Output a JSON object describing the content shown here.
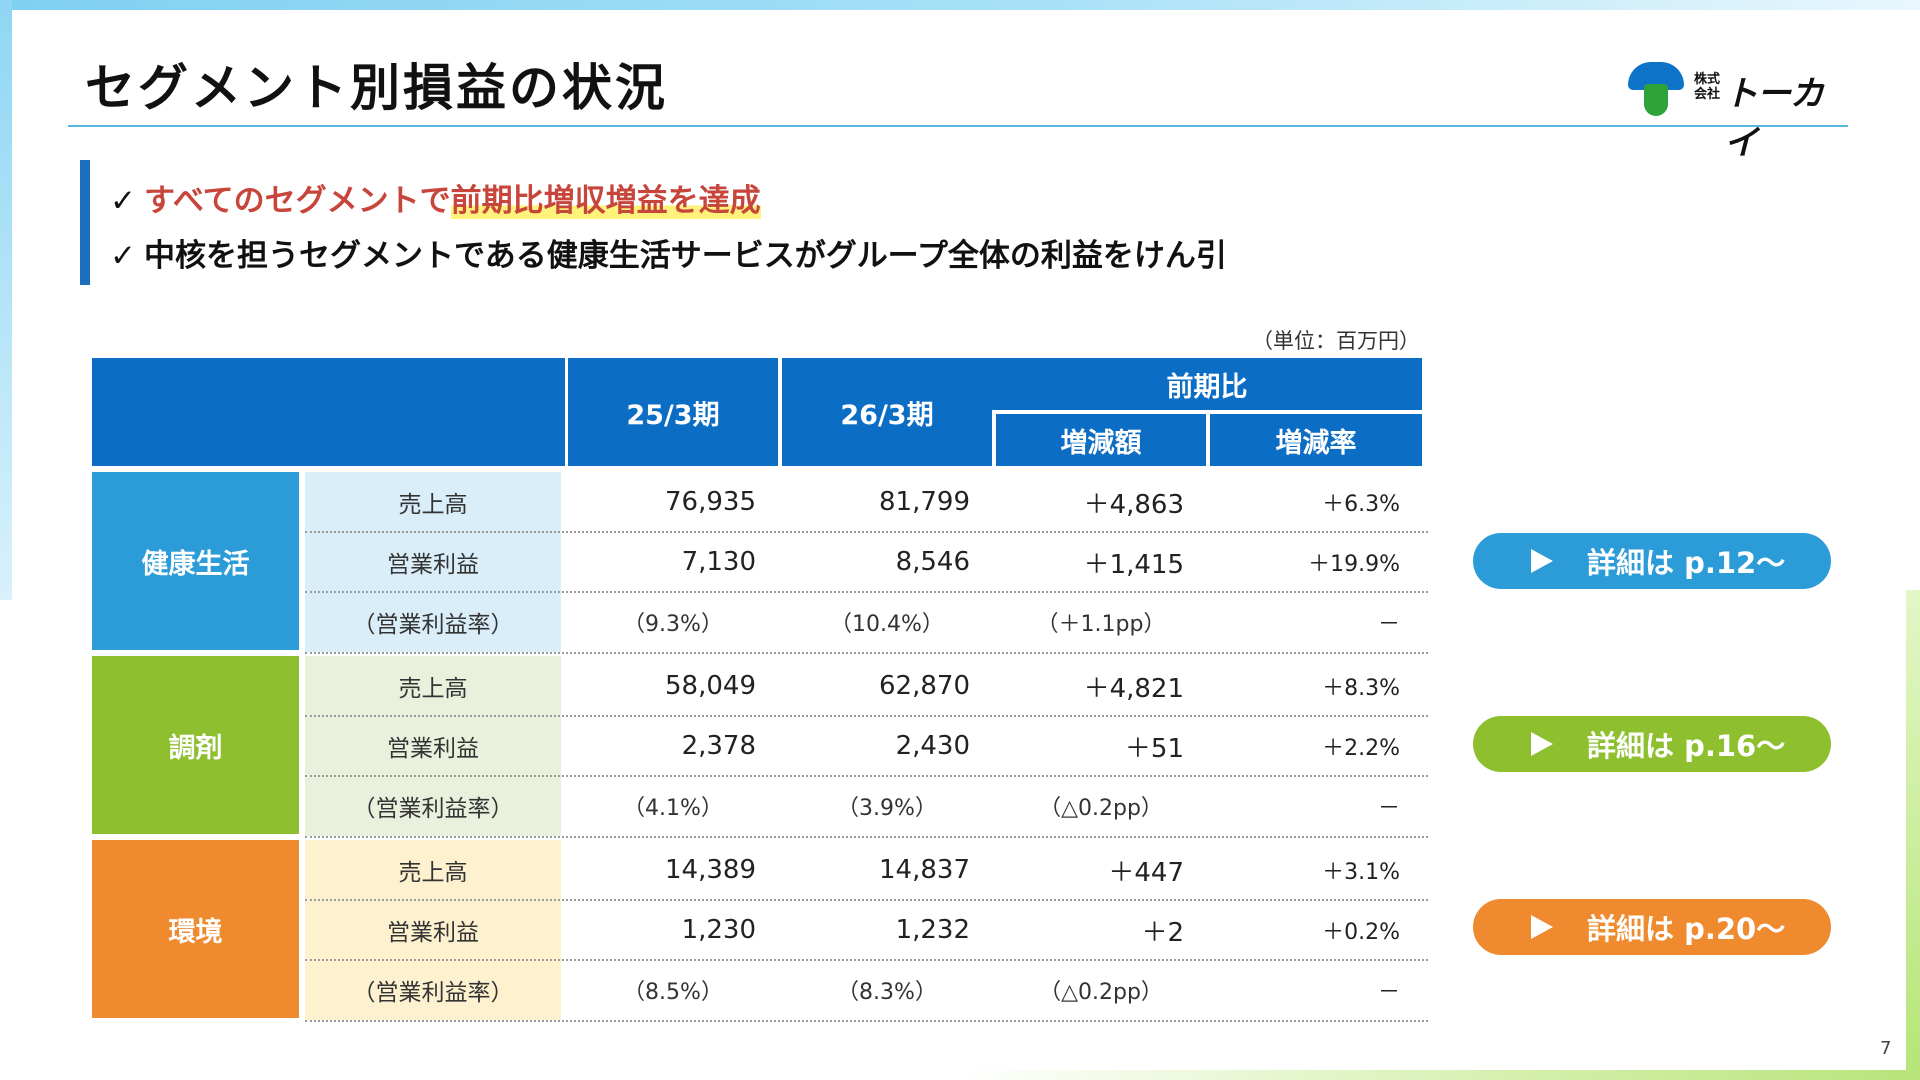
{
  "title": "セグメント別損益の状況",
  "logo": {
    "small_text": "株式会社",
    "name": "トーカイ"
  },
  "bullets": [
    {
      "check": "✓",
      "text_plain": "すべてのセグメントで",
      "text_highlight": "前期比増収増益を達成"
    },
    {
      "check": "✓",
      "text": "中核を担うセグメントである健康生活サービスがグループ全体の利益をけん引"
    }
  ],
  "unit": "（単位：百万円）",
  "table": {
    "headers": {
      "col1": "25/3期",
      "col2": "26/3期",
      "group": "前期比",
      "col3": "増減額",
      "col4": "増減率"
    },
    "segments": [
      {
        "name": "健康生活",
        "rows": [
          {
            "label": "売上高",
            "v1": "76,935",
            "v2": "81,799",
            "diff": "＋4,863",
            "rate": "＋6.3%"
          },
          {
            "label": "営業利益",
            "v1": "7,130",
            "v2": "8,546",
            "diff": "＋1,415",
            "rate": "＋19.9%"
          },
          {
            "label": "（営業利益率）",
            "v1": "（9.3%）",
            "v2": "（10.4%）",
            "diff": "（＋1.1pp）",
            "rate": "－"
          }
        ]
      },
      {
        "name": "調剤",
        "rows": [
          {
            "label": "売上高",
            "v1": "58,049",
            "v2": "62,870",
            "diff": "＋4,821",
            "rate": "＋8.3%"
          },
          {
            "label": "営業利益",
            "v1": "2,378",
            "v2": "2,430",
            "diff": "＋51",
            "rate": "＋2.2%"
          },
          {
            "label": "（営業利益率）",
            "v1": "（4.1%）",
            "v2": "（3.9%）",
            "diff": "（△0.2pp）",
            "rate": "－"
          }
        ]
      },
      {
        "name": "環境",
        "rows": [
          {
            "label": "売上高",
            "v1": "14,389",
            "v2": "14,837",
            "diff": "＋447",
            "rate": "＋3.1%"
          },
          {
            "label": "営業利益",
            "v1": "1,230",
            "v2": "1,232",
            "diff": "＋2",
            "rate": "＋0.2%"
          },
          {
            "label": "（営業利益率）",
            "v1": "（8.5%）",
            "v2": "（8.3%）",
            "diff": "（△0.2pp）",
            "rate": "－"
          }
        ]
      }
    ]
  },
  "detail_buttons": [
    {
      "label": "詳細は p.12～",
      "color": "#2b9cd8"
    },
    {
      "label": "詳細は p.16～",
      "color": "#8dbf2f"
    },
    {
      "label": "詳細は p.20～",
      "color": "#ef8a2f"
    }
  ],
  "page_number": "7"
}
